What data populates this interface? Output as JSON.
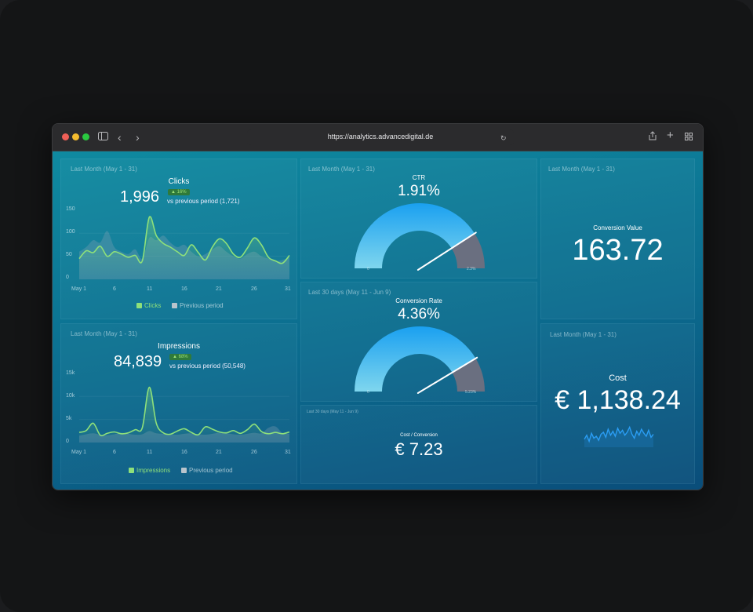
{
  "browser": {
    "url": "https://analytics.advancedigital.de"
  },
  "clicks": {
    "range": "Last Month (May 1 - 31)",
    "title": "Clicks",
    "value": "1,996",
    "badge": "▲ 16%",
    "vs": "vs previous period (1,721)",
    "yticks": [
      "150",
      "100",
      "50",
      "0"
    ],
    "xticks": [
      "May 1",
      "6",
      "11",
      "16",
      "21",
      "26",
      "31"
    ],
    "legend_current": "Clicks",
    "legend_previous": "Previous period"
  },
  "impressions": {
    "range": "Last Month (May 1 - 31)",
    "title": "Impressions",
    "value": "84,839",
    "badge": "▲ 68%",
    "vs": "vs previous period (50,548)",
    "yticks": [
      "15k",
      "10k",
      "5k",
      "0"
    ],
    "xticks": [
      "May 1",
      "6",
      "11",
      "16",
      "21",
      "26",
      "31"
    ],
    "legend_current": "Impressions",
    "legend_previous": "Previous period"
  },
  "ctr": {
    "range": "Last Month (May 1 - 31)",
    "title": "CTR",
    "value": "1.91%",
    "gauge_fraction": 0.82,
    "min": "0",
    "max": "2.3%"
  },
  "conversion_rate": {
    "range": "Last 30 days (May 11 - Jun 9)",
    "title": "Conversion Rate",
    "value": "4.36%",
    "gauge_fraction": 0.83,
    "min": "0",
    "max": "5.23%"
  },
  "cost_per_conversion": {
    "range": "Last 30 days (May 11 - Jun 9)",
    "title": "Cost / Conversion",
    "value": "€ 7.23"
  },
  "conversion_value": {
    "range": "Last Month (May 1 - 31)",
    "title": "Conversion Value",
    "value": "163.72"
  },
  "cost": {
    "range": "Last Month (May 1 - 31)",
    "title": "Cost",
    "value": "€ 1,138.24"
  },
  "colors": {
    "current_line": "#8ee07a",
    "gauge_fill": "#1aa0f0",
    "gauge_track": "#6a6f80",
    "sparkline": "#2a9df4"
  },
  "chart_data": [
    {
      "type": "area",
      "title": "Clicks",
      "x": [
        1,
        2,
        3,
        4,
        5,
        6,
        7,
        8,
        9,
        10,
        11,
        12,
        13,
        14,
        15,
        16,
        17,
        18,
        19,
        20,
        21,
        22,
        23,
        24,
        25,
        26,
        27,
        28,
        29,
        30,
        31
      ],
      "ylim": [
        0,
        150
      ],
      "series": [
        {
          "name": "Clicks",
          "values": [
            45,
            62,
            58,
            72,
            50,
            60,
            55,
            48,
            52,
            40,
            135,
            95,
            78,
            70,
            60,
            52,
            75,
            58,
            42,
            70,
            88,
            78,
            55,
            48,
            68,
            90,
            75,
            48,
            40,
            35,
            52
          ]
        },
        {
          "name": "Previous period",
          "values": [
            60,
            70,
            85,
            80,
            105,
            70,
            60,
            55,
            65,
            45,
            90,
            85,
            95,
            80,
            70,
            75,
            60,
            50,
            55,
            65,
            72,
            60,
            50,
            45,
            55,
            60,
            50,
            45,
            40,
            42,
            48
          ]
        }
      ]
    },
    {
      "type": "area",
      "title": "Impressions",
      "x": [
        1,
        2,
        3,
        4,
        5,
        6,
        7,
        8,
        9,
        10,
        11,
        12,
        13,
        14,
        15,
        16,
        17,
        18,
        19,
        20,
        21,
        22,
        23,
        24,
        25,
        26,
        27,
        28,
        29,
        30,
        31
      ],
      "ylim": [
        0,
        15000
      ],
      "series": [
        {
          "name": "Impressions",
          "values": [
            2200,
            2600,
            4200,
            1600,
            2000,
            2300,
            1900,
            2100,
            2800,
            3200,
            12000,
            4200,
            2100,
            1800,
            2500,
            3000,
            2200,
            1700,
            3400,
            2900,
            2300,
            2100,
            2600,
            2000,
            2800,
            4000,
            2400,
            1900,
            2200,
            1900,
            2300
          ]
        },
        {
          "name": "Previous period",
          "values": [
            1500,
            1800,
            2000,
            1700,
            1600,
            1800,
            2100,
            1900,
            1700,
            1800,
            2500,
            2000,
            1900,
            1800,
            1700,
            1900,
            2000,
            1800,
            1700,
            1900,
            2100,
            2000,
            1800,
            1700,
            1900,
            2100,
            2000,
            3200,
            3500,
            2100,
            1900
          ]
        }
      ]
    }
  ]
}
